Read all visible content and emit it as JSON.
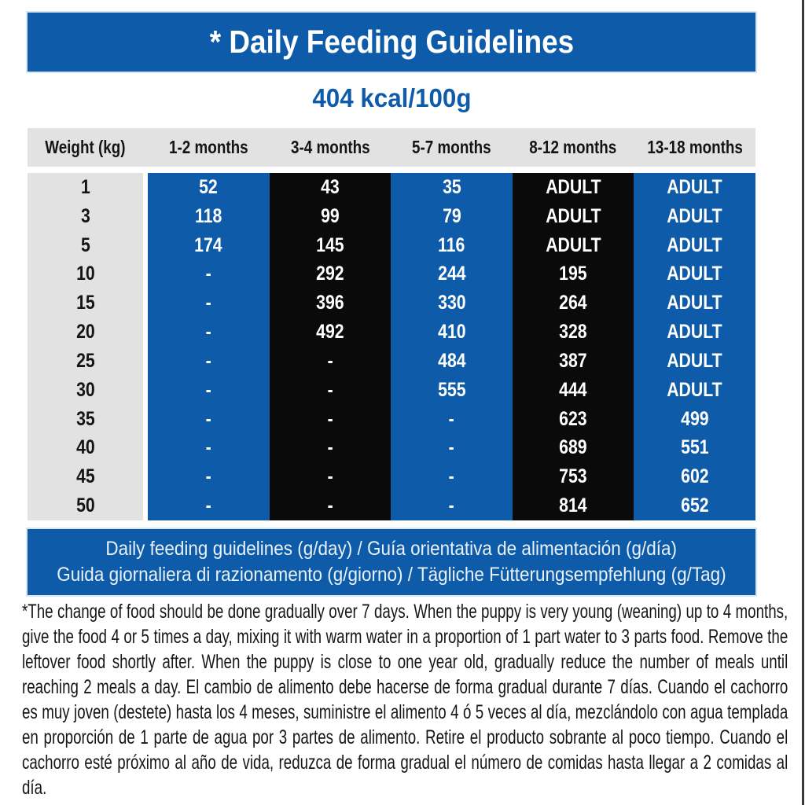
{
  "header": {
    "title": "* Daily Feeding Guidelines",
    "kcal": "404 kcal/100g"
  },
  "table": {
    "columns": [
      "Weight (kg)",
      "1-2 months",
      "3-4 months",
      "5-7 months",
      "8-12 months",
      "13-18 months"
    ],
    "rows": [
      {
        "weight": "1",
        "values": [
          "52",
          "43",
          "35",
          "ADULT",
          "ADULT"
        ]
      },
      {
        "weight": "3",
        "values": [
          "118",
          "99",
          "79",
          "ADULT",
          "ADULT"
        ]
      },
      {
        "weight": "5",
        "values": [
          "174",
          "145",
          "116",
          "ADULT",
          "ADULT"
        ]
      },
      {
        "weight": "10",
        "values": [
          "-",
          "292",
          "244",
          "195",
          "ADULT"
        ]
      },
      {
        "weight": "15",
        "values": [
          "-",
          "396",
          "330",
          "264",
          "ADULT"
        ]
      },
      {
        "weight": "20",
        "values": [
          "-",
          "492",
          "410",
          "328",
          "ADULT"
        ]
      },
      {
        "weight": "25",
        "values": [
          "-",
          "-",
          "484",
          "387",
          "ADULT"
        ]
      },
      {
        "weight": "30",
        "values": [
          "-",
          "-",
          "555",
          "444",
          "ADULT"
        ]
      },
      {
        "weight": "35",
        "values": [
          "-",
          "-",
          "-",
          "623",
          "499"
        ]
      },
      {
        "weight": "40",
        "values": [
          "-",
          "-",
          "-",
          "689",
          "551"
        ]
      },
      {
        "weight": "45",
        "values": [
          "-",
          "-",
          "-",
          "753",
          "602"
        ]
      },
      {
        "weight": "50",
        "values": [
          "-",
          "-",
          "-",
          "814",
          "652"
        ]
      }
    ],
    "caption_line1": "Daily feeding guidelines (g/day) / Guía orientativa de alimentación (g/día)",
    "caption_line2": "Guida giornaliera di razionamento (g/giorno) / Tägliche Fütterungsempfehlung (g/Tag)"
  },
  "footnote": "*The change of food should be done gradually over 7 days. When the puppy is very young (weaning) up to 4 months, give the food 4 or 5 times a day, mixing it with warm water in a proportion of 1 part water to 3 parts food. Remove the leftover food shortly after. When the puppy is close to one year old, gradually reduce the number of meals until reaching 2 meals a day. El cambio de alimento debe hacerse de forma gradual durante 7 días. Cuando el cachorro es muy joven (destete) hasta los 4 meses, suministre el alimento 4 ó 5 veces al día, mezclándolo con agua templada en proporción de 1 parte de agua por 3 partes de alimento. Retire el producto sobrante al poco tiempo. Cuando el cachorro esté próximo al año de vida, reduzca de forma gradual el número de comidas hasta llegar a 2 comidas al día.",
  "colors": {
    "brand_blue": "#0E5CA9",
    "column_black": "#0A0A0A",
    "header_gray": "#E2E2E2"
  }
}
